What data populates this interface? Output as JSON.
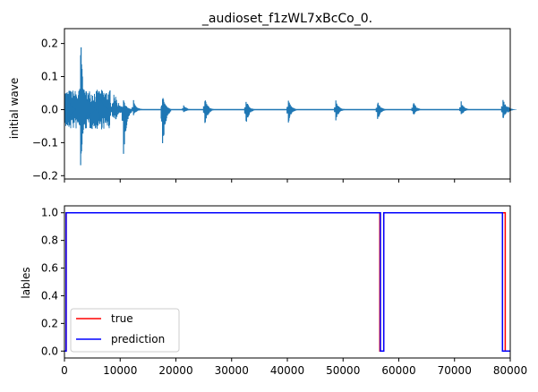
{
  "chart_data": [
    {
      "type": "line",
      "title": "_audioset_f1zWL7xBcCo_0.",
      "xlabel": "",
      "ylabel": "initial wave",
      "xlim": [
        0,
        80000
      ],
      "ylim": [
        -0.21,
        0.245
      ],
      "y_ticks": [
        -0.2,
        -0.1,
        0.0,
        0.1,
        0.2
      ],
      "y_tick_labels": [
        "−0.2",
        "−0.1",
        "0.0",
        "0.1",
        "0.2"
      ],
      "x_ticks": [
        0,
        10000,
        20000,
        30000,
        40000,
        50000,
        60000,
        70000,
        80000
      ],
      "x_tick_labels_shown": false,
      "series_color": "#1f77b4",
      "envelope_events": [
        {
          "x": [
            0,
            8200
          ],
          "max": 0.06,
          "min": -0.06
        },
        {
          "x": [
            8200,
            8700
          ],
          "max": 0.025,
          "min": -0.02
        },
        {
          "x": [
            8700,
            9500
          ],
          "max": 0.045,
          "min": -0.03
        },
        {
          "x": [
            9500,
            10000
          ],
          "max": 0.02,
          "min": -0.02
        },
        {
          "x": [
            10000,
            11200
          ],
          "max": 0.01,
          "min": -0.01
        }
      ],
      "peaks": [
        {
          "x": 500,
          "max": 0.05,
          "min": -0.06
        },
        {
          "x": 2900,
          "max": 0.225,
          "min": -0.19
        },
        {
          "x": 4200,
          "max": 0.05,
          "min": -0.04
        },
        {
          "x": 6400,
          "max": 0.05,
          "min": -0.05
        },
        {
          "x": 10600,
          "max": 0.03,
          "min": -0.155
        },
        {
          "x": 12400,
          "max": 0.03,
          "min": -0.02
        },
        {
          "x": 17600,
          "max": 0.045,
          "min": -0.125
        },
        {
          "x": 21400,
          "max": 0.015,
          "min": -0.01
        },
        {
          "x": 25200,
          "max": 0.035,
          "min": -0.05
        },
        {
          "x": 32600,
          "max": 0.03,
          "min": -0.05
        },
        {
          "x": 40200,
          "max": 0.03,
          "min": -0.04
        },
        {
          "x": 48700,
          "max": 0.03,
          "min": -0.035
        },
        {
          "x": 56200,
          "max": 0.025,
          "min": -0.035
        },
        {
          "x": 62600,
          "max": 0.025,
          "min": -0.02
        },
        {
          "x": 71200,
          "max": 0.025,
          "min": -0.02
        },
        {
          "x": 78700,
          "max": 0.035,
          "min": -0.035
        },
        {
          "x": 79600,
          "max": 0.01,
          "min": -0.01
        }
      ]
    },
    {
      "type": "line",
      "title": "",
      "xlabel": "",
      "ylabel": "lables",
      "xlim": [
        0,
        80000
      ],
      "ylim": [
        -0.05,
        1.05
      ],
      "y_ticks": [
        0.0,
        0.2,
        0.4,
        0.6,
        0.8,
        1.0
      ],
      "y_tick_labels": [
        "0.0",
        "0.2",
        "0.4",
        "0.6",
        "0.8",
        "1.0"
      ],
      "x_ticks": [
        0,
        10000,
        20000,
        30000,
        40000,
        50000,
        60000,
        70000,
        80000
      ],
      "x_tick_labels": [
        "0",
        "10000",
        "20000",
        "30000",
        "40000",
        "50000",
        "60000",
        "70000",
        "80000"
      ],
      "legend_position": "lower-left",
      "series": [
        {
          "name": "true",
          "color": "#ff0000",
          "x": [
            0,
            300,
            300,
            56600,
            56600,
            57300,
            57300,
            79100,
            79100,
            80000
          ],
          "y": [
            0,
            0,
            1,
            1,
            0,
            0,
            1,
            1,
            0,
            0
          ]
        },
        {
          "name": "prediction",
          "color": "#0000ff",
          "x": [
            0,
            300,
            300,
            56700,
            56700,
            57300,
            57300,
            78600,
            78600,
            80000
          ],
          "y": [
            0,
            0,
            1,
            1,
            0,
            0,
            1,
            1,
            0,
            0
          ]
        }
      ]
    }
  ]
}
